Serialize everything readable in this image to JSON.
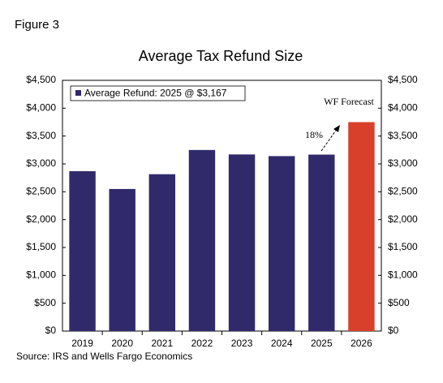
{
  "chart_data": {
    "type": "bar",
    "figure_label": "Figure 3",
    "title": "Average Tax Refund Size",
    "categories": [
      "2019",
      "2020",
      "2021",
      "2022",
      "2023",
      "2024",
      "2025",
      "2026"
    ],
    "series": [
      {
        "name": "Average Refund: 2025 @ $3,167",
        "color": "#302a6b",
        "colors": [
          "#302a6b",
          "#302a6b",
          "#302a6b",
          "#302a6b",
          "#302a6b",
          "#302a6b",
          "#302a6b",
          "#d9402b"
        ],
        "values": [
          2870,
          2550,
          2815,
          3250,
          3170,
          3140,
          3167,
          3750
        ]
      }
    ],
    "ylim": [
      0,
      4500
    ],
    "yticks": [
      {
        "value": 0,
        "label": "$0"
      },
      {
        "value": 500,
        "label": "$500"
      },
      {
        "value": 1000,
        "label": "$1,000"
      },
      {
        "value": 1500,
        "label": "$1,500"
      },
      {
        "value": 2000,
        "label": "$2,000"
      },
      {
        "value": 2500,
        "label": "$2,500"
      },
      {
        "value": 3000,
        "label": "$3,000"
      },
      {
        "value": 3500,
        "label": "$3,500"
      },
      {
        "value": 4000,
        "label": "$4,000"
      },
      {
        "value": 4500,
        "label": "$4,500"
      }
    ],
    "y2lim": [
      0,
      4500
    ],
    "y2ticks": [
      {
        "value": 0,
        "label": "$0"
      },
      {
        "value": 500,
        "label": "$500"
      },
      {
        "value": 1000,
        "label": "$1,000"
      },
      {
        "value": 1500,
        "label": "$1,500"
      },
      {
        "value": 2000,
        "label": "$2,000"
      },
      {
        "value": 2500,
        "label": "$2,500"
      },
      {
        "value": 3000,
        "label": "$3,000"
      },
      {
        "value": 3500,
        "label": "$3,500"
      },
      {
        "value": 4000,
        "label": "$4,000"
      },
      {
        "value": 4500,
        "label": "$4,500"
      }
    ],
    "annotations": [
      "WF Forecast",
      "18%"
    ],
    "source": "Source: IRS and Wells Fargo Economics"
  }
}
